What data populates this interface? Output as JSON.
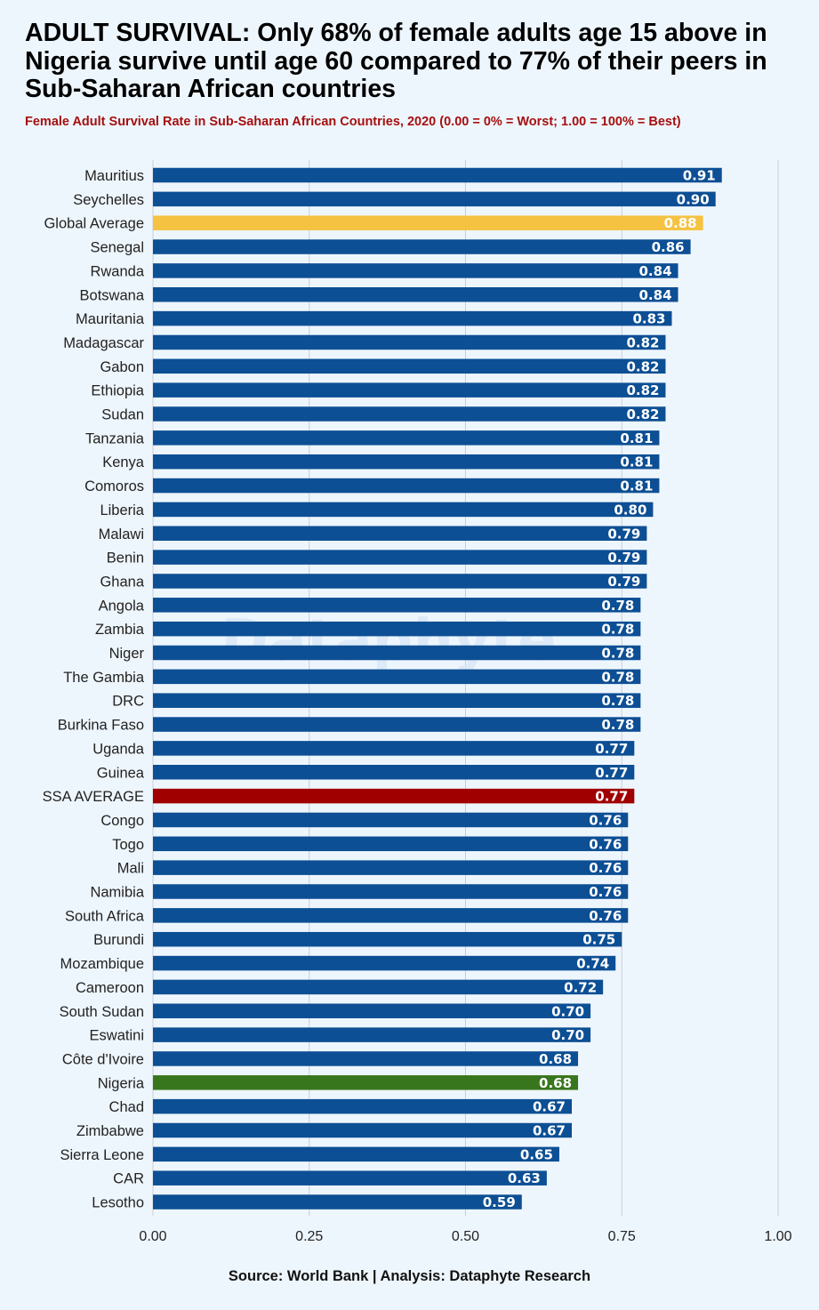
{
  "header": {
    "title": "ADULT SURVIVAL: Only 68% of female adults age 15 above in Nigeria survive until age 60 compared to 77% of their peers in Sub-Saharan African countries",
    "subtitle": "Female Adult Survival Rate in Sub-Saharan African Countries, 2020 (0.00 = 0% = Worst; 1.00 = 100% = Best)"
  },
  "watermark": "Dataphyte",
  "footer": {
    "source": "Source: World Bank | Analysis: Dataphyte Research"
  },
  "colors": {
    "default_bar": "#0d4f94",
    "global_average_bar": "#f5c242",
    "ssa_average_bar": "#a00000",
    "nigeria_bar": "#38761d",
    "background": "#eef6fd",
    "subtitle": "#a50f0f",
    "gridline": "#c9ced6"
  },
  "chart_data": {
    "type": "bar",
    "orientation": "horizontal",
    "categories": [
      "Mauritius",
      "Seychelles",
      "Global Average",
      "Senegal",
      "Rwanda",
      "Botswana",
      "Mauritania",
      "Madagascar",
      "Gabon",
      "Ethiopia",
      "Sudan",
      "Tanzania",
      "Kenya",
      "Comoros",
      "Liberia",
      "Malawi",
      "Benin",
      "Ghana",
      "Angola",
      "Zambia",
      "Niger",
      "The Gambia",
      "DRC",
      "Burkina Faso",
      "Uganda",
      "Guinea",
      "SSA AVERAGE",
      "Congo",
      "Togo",
      "Mali",
      "Namibia",
      "South Africa",
      "Burundi",
      "Mozambique",
      "Cameroon",
      "South Sudan",
      "Eswatini",
      "Côte d'Ivoire",
      "Nigeria",
      "Chad",
      "Zimbabwe",
      "Sierra Leone",
      "CAR",
      "Lesotho"
    ],
    "values": [
      0.91,
      0.9,
      0.88,
      0.86,
      0.84,
      0.84,
      0.83,
      0.82,
      0.82,
      0.82,
      0.82,
      0.81,
      0.81,
      0.81,
      0.8,
      0.79,
      0.79,
      0.79,
      0.78,
      0.78,
      0.78,
      0.78,
      0.78,
      0.78,
      0.77,
      0.77,
      0.77,
      0.76,
      0.76,
      0.76,
      0.76,
      0.76,
      0.75,
      0.74,
      0.72,
      0.7,
      0.7,
      0.68,
      0.68,
      0.67,
      0.67,
      0.65,
      0.63,
      0.59
    ],
    "value_labels": [
      "0.91",
      "0.90",
      "0.88",
      "0.86",
      "0.84",
      "0.84",
      "0.83",
      "0.82",
      "0.82",
      "0.82",
      "0.82",
      "0.81",
      "0.81",
      "0.81",
      "0.80",
      "0.79",
      "0.79",
      "0.79",
      "0.78",
      "0.78",
      "0.78",
      "0.78",
      "0.78",
      "0.78",
      "0.77",
      "0.77",
      "0.77",
      "0.76",
      "0.76",
      "0.76",
      "0.76",
      "0.76",
      "0.75",
      "0.74",
      "0.72",
      "0.70",
      "0.70",
      "0.68",
      "0.68",
      "0.67",
      "0.67",
      "0.65",
      "0.63",
      "0.59"
    ],
    "highlight": {
      "Global Average": "global_average_bar",
      "SSA AVERAGE": "ssa_average_bar",
      "Nigeria": "nigeria_bar"
    },
    "xlim": [
      0,
      1
    ],
    "xticks": [
      0,
      0.25,
      0.5,
      0.75,
      1.0
    ],
    "xtick_labels": [
      "0.00",
      "0.25",
      "0.50",
      "0.75",
      "1.00"
    ],
    "xlabel": "",
    "ylabel": "",
    "grid": "vertical"
  }
}
